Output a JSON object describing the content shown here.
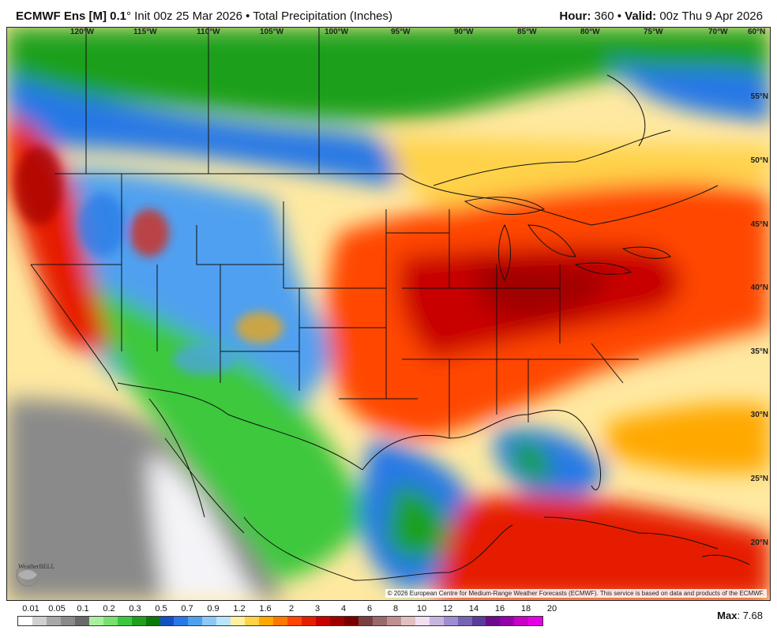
{
  "header": {
    "model": "ECMWF Ens [M] 0.1",
    "degree": "°",
    "init": " Init 00z 25 Mar 2026",
    "bullet": " • ",
    "field": "Total Precipitation (Inches)",
    "hour_label": "Hour:",
    "hour": " 360",
    "valid_label": "Valid:",
    "valid": " 00z Thu 9 Apr 2026"
  },
  "map": {
    "lon_labels": [
      "120°W",
      "115°W",
      "110°W",
      "105°W",
      "100°W",
      "95°W",
      "90°W",
      "85°W",
      "80°W",
      "75°W",
      "70°W",
      "60°N"
    ],
    "lat_labels": [
      "55°N",
      "50°N",
      "45°N",
      "40°N",
      "35°N",
      "30°N",
      "25°N",
      "20°N"
    ],
    "copyright": "© 2026 European Centre for Medium-Range Weather Forecasts (ECMWF). This service is based on data and products of the ECMWF.",
    "logo": "WeatherBELL"
  },
  "legend": {
    "ticks": [
      "0.01",
      "0.05",
      "0.1",
      "0.2",
      "0.3",
      "0.5",
      "0.7",
      "0.9",
      "1.2",
      "1.6",
      "2",
      "3",
      "4",
      "6",
      "8",
      "10",
      "12",
      "14",
      "16",
      "18",
      "20"
    ],
    "colors": [
      "#ffffff",
      "#d0d0d0",
      "#a8a8a8",
      "#8a8a8a",
      "#6a6a6a",
      "#a8f0a0",
      "#78e070",
      "#3cc83c",
      "#1ea01e",
      "#0a780a",
      "#1450c8",
      "#2878e6",
      "#50a0f0",
      "#8cc8f8",
      "#b8e4fc",
      "#fff0a0",
      "#ffd24a",
      "#ffa800",
      "#ff7800",
      "#ff4600",
      "#e61e00",
      "#c80000",
      "#a00000",
      "#7a0000",
      "#7a4040",
      "#9a6a6a",
      "#c09090",
      "#e0c0c0",
      "#f0e0f0",
      "#c8b4e0",
      "#a08cd2",
      "#7864b4",
      "#5a3c9a",
      "#6e0a8c",
      "#9600aa",
      "#c800c8",
      "#e600e6"
    ]
  },
  "max": {
    "label": "Max",
    "value": ": 7.68"
  }
}
